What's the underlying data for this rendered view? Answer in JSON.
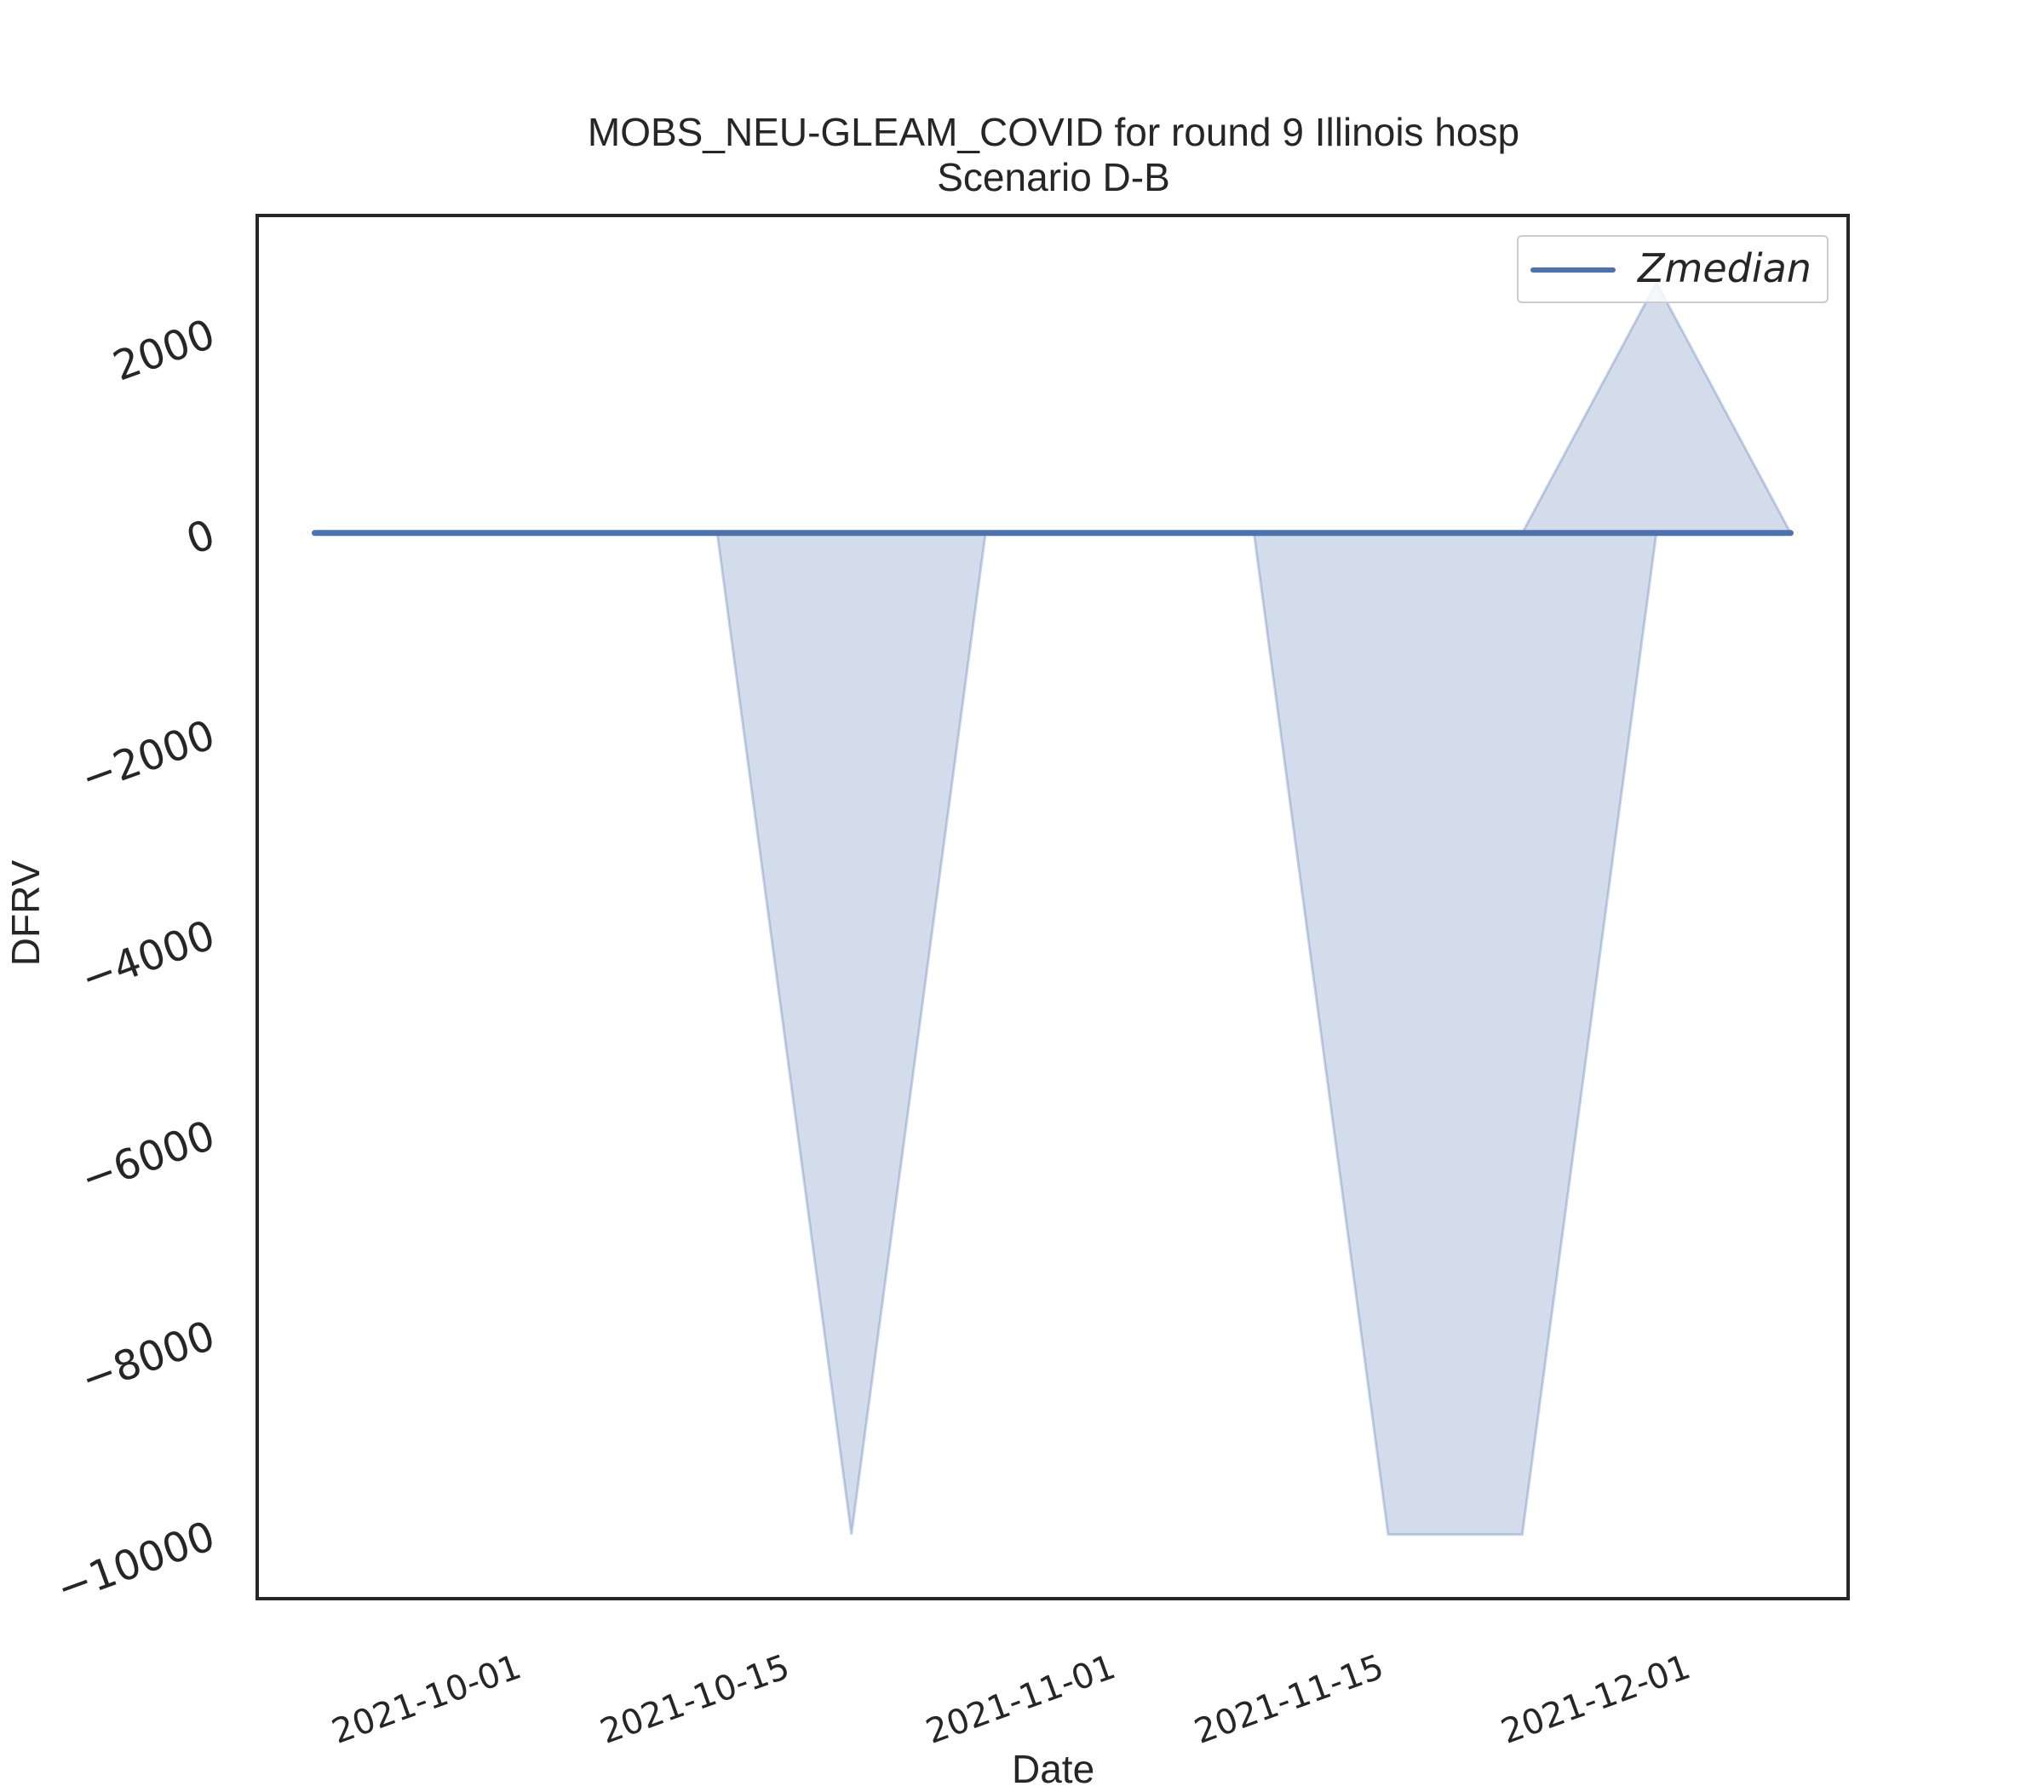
{
  "chart_data": {
    "type": "line",
    "title": "MOBS_NEU-GLEAM_COVID for round 9 Illinois hosp",
    "subtitle": "Scenario D-B",
    "xlabel": "Date",
    "ylabel": "DFRV",
    "x": [
      "2021-09-21",
      "2021-09-28",
      "2021-10-05",
      "2021-10-12",
      "2021-10-19",
      "2021-10-26",
      "2021-11-02",
      "2021-11-09",
      "2021-11-16",
      "2021-11-23",
      "2021-11-30",
      "2021-12-07"
    ],
    "series": [
      {
        "name": "Zmedian",
        "color": "#4c72b0",
        "values": [
          0,
          0,
          0,
          0,
          0,
          0,
          0,
          0,
          0,
          0,
          0,
          0
        ]
      }
    ],
    "band": {
      "color": "#4c72b0",
      "lower": [
        0,
        0,
        0,
        0,
        -10000,
        0,
        0,
        0,
        -10000,
        -10000,
        0,
        0
      ],
      "upper": [
        0,
        0,
        0,
        0,
        0,
        0,
        0,
        0,
        0,
        0,
        2500,
        0
      ]
    },
    "xticks": [
      "2021-10-01",
      "2021-10-15",
      "2021-11-01",
      "2021-11-15",
      "2021-12-01"
    ],
    "yticks": [
      2000,
      0,
      -2000,
      -4000,
      -6000,
      -8000,
      -10000
    ],
    "yticklabels": [
      "2000",
      "0",
      "−2000",
      "−4000",
      "−6000",
      "−8000",
      "−10000"
    ],
    "xlim": [
      "2021-09-18",
      "2021-12-10"
    ],
    "ylim": [
      -10640,
      3170
    ],
    "grid": false,
    "legend_position": "top-right"
  }
}
